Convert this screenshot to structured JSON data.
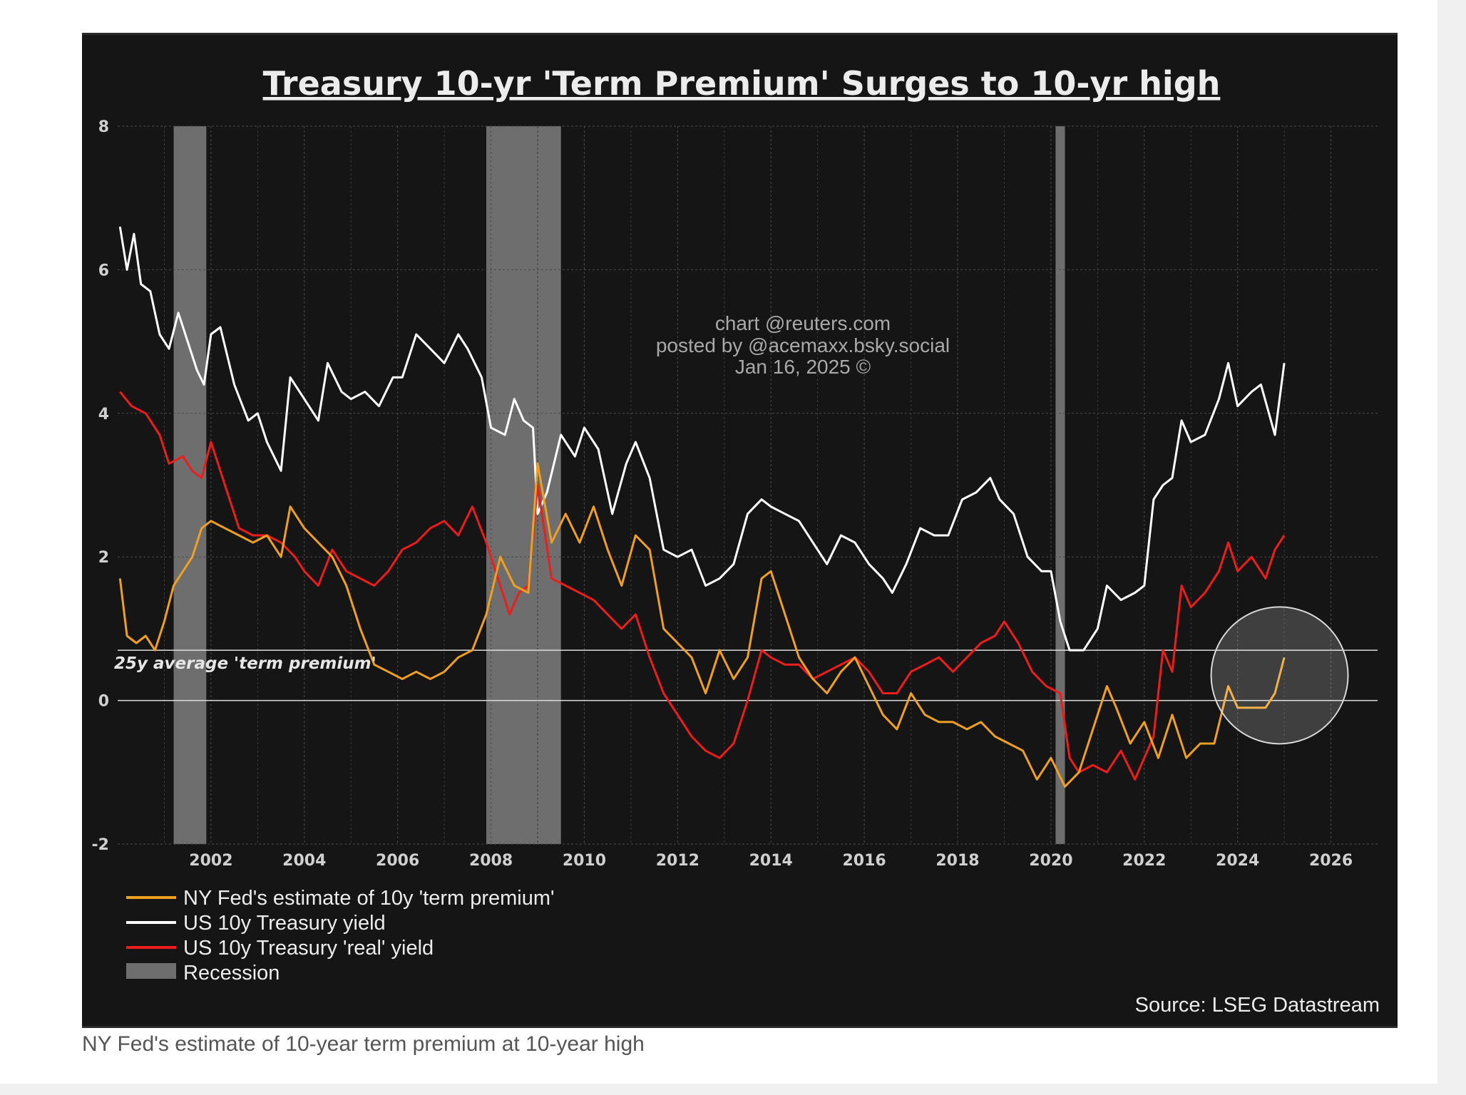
{
  "caption": "NY Fed's estimate of 10-year term premium at 10-year high",
  "colors": {
    "term_premium": "#f0a020",
    "nominal_yield": "#ffffff",
    "real_yield": "#ee1c1c",
    "recession": "#6e6e6e",
    "background": "#151515"
  },
  "chart_data": {
    "type": "line",
    "title": "Treasury 10-yr 'Term Premium' Surges to 10-yr high",
    "watermark": [
      "chart @reuters.com",
      "posted by @acemaxx.bsky.social",
      "Jan 16, 2025 ©"
    ],
    "source": "Source: LSEG Datastream",
    "xlim": [
      2000,
      2027
    ],
    "ylim": [
      -2,
      8
    ],
    "x_ticks": [
      "2002",
      "2004",
      "2006",
      "2008",
      "2010",
      "2012",
      "2014",
      "2016",
      "2018",
      "2020",
      "2022",
      "2024",
      "2026"
    ],
    "y_ticks": [
      "8",
      "6",
      "4",
      "2",
      "0",
      "-2"
    ],
    "grid": true,
    "legend_position": "bottom-left",
    "reference_lines": [
      {
        "label": "25y average 'term premium'",
        "y": 0.7
      },
      {
        "label": "",
        "y": 0
      }
    ],
    "highlight_circle": {
      "x": 2024.9,
      "y": 0.35
    },
    "recessions": [
      {
        "name": "Recession",
        "start": 2001.2,
        "end": 2001.9
      },
      {
        "name": "Recession",
        "start": 2007.9,
        "end": 2009.5
      },
      {
        "name": "Recession",
        "start": 2020.1,
        "end": 2020.3
      }
    ],
    "series": [
      {
        "name": "NY Fed's estimate of 10y 'term premium'",
        "color": "#f0a020",
        "x": [
          2000.05,
          2000.2,
          2000.4,
          2000.6,
          2000.8,
          2001.0,
          2001.2,
          2001.4,
          2001.6,
          2001.8,
          2002.0,
          2002.3,
          2002.6,
          2002.9,
          2003.2,
          2003.5,
          2003.7,
          2004.0,
          2004.3,
          2004.6,
          2004.9,
          2005.2,
          2005.5,
          2005.8,
          2006.1,
          2006.4,
          2006.7,
          2007.0,
          2007.3,
          2007.6,
          2007.9,
          2008.2,
          2008.5,
          2008.8,
          2009.0,
          2009.3,
          2009.6,
          2009.9,
          2010.2,
          2010.5,
          2010.8,
          2011.1,
          2011.4,
          2011.7,
          2012.0,
          2012.3,
          2012.6,
          2012.9,
          2013.2,
          2013.5,
          2013.8,
          2014.0,
          2014.3,
          2014.6,
          2014.9,
          2015.2,
          2015.5,
          2015.8,
          2016.1,
          2016.4,
          2016.7,
          2017.0,
          2017.3,
          2017.6,
          2017.9,
          2018.2,
          2018.5,
          2018.8,
          2019.1,
          2019.4,
          2019.7,
          2020.0,
          2020.3,
          2020.6,
          2020.9,
          2021.2,
          2021.4,
          2021.7,
          2022.0,
          2022.3,
          2022.6,
          2022.9,
          2023.2,
          2023.5,
          2023.8,
          2024.0,
          2024.3,
          2024.6,
          2024.8,
          2025.0
        ],
        "values": [
          1.7,
          0.9,
          0.8,
          0.9,
          0.7,
          1.1,
          1.6,
          1.8,
          2.0,
          2.4,
          2.5,
          2.4,
          2.3,
          2.2,
          2.3,
          2.0,
          2.7,
          2.4,
          2.2,
          2.0,
          1.6,
          1.0,
          0.5,
          0.4,
          0.3,
          0.4,
          0.3,
          0.4,
          0.6,
          0.7,
          1.2,
          2.0,
          1.6,
          1.5,
          3.3,
          2.2,
          2.6,
          2.2,
          2.7,
          2.1,
          1.6,
          2.3,
          2.1,
          1.0,
          0.8,
          0.6,
          0.1,
          0.7,
          0.3,
          0.6,
          1.7,
          1.8,
          1.2,
          0.6,
          0.3,
          0.1,
          0.4,
          0.6,
          0.2,
          -0.2,
          -0.4,
          0.1,
          -0.2,
          -0.3,
          -0.3,
          -0.4,
          -0.3,
          -0.5,
          -0.6,
          -0.7,
          -1.1,
          -0.8,
          -1.2,
          -1.0,
          -0.4,
          0.2,
          -0.1,
          -0.6,
          -0.3,
          -0.8,
          -0.2,
          -0.8,
          -0.6,
          -0.6,
          0.2,
          -0.1,
          -0.1,
          -0.1,
          0.1,
          0.6
        ]
      },
      {
        "name": "US 10y Treasury yield",
        "color": "#ffffff",
        "x": [
          2000.05,
          2000.2,
          2000.35,
          2000.5,
          2000.7,
          2000.9,
          2001.1,
          2001.3,
          2001.5,
          2001.7,
          2001.85,
          2002.0,
          2002.2,
          2002.5,
          2002.8,
          2003.0,
          2003.2,
          2003.5,
          2003.7,
          2004.0,
          2004.3,
          2004.5,
          2004.8,
          2005.0,
          2005.3,
          2005.6,
          2005.9,
          2006.1,
          2006.4,
          2006.7,
          2007.0,
          2007.3,
          2007.5,
          2007.8,
          2008.0,
          2008.3,
          2008.5,
          2008.7,
          2008.9,
          2009.0,
          2009.2,
          2009.5,
          2009.8,
          2010.0,
          2010.3,
          2010.6,
          2010.9,
          2011.1,
          2011.4,
          2011.7,
          2012.0,
          2012.3,
          2012.6,
          2012.9,
          2013.2,
          2013.5,
          2013.8,
          2014.0,
          2014.3,
          2014.6,
          2014.9,
          2015.2,
          2015.5,
          2015.8,
          2016.1,
          2016.4,
          2016.6,
          2016.9,
          2017.2,
          2017.5,
          2017.8,
          2018.1,
          2018.4,
          2018.7,
          2018.9,
          2019.2,
          2019.5,
          2019.8,
          2020.0,
          2020.2,
          2020.4,
          2020.7,
          2021.0,
          2021.2,
          2021.5,
          2021.8,
          2022.0,
          2022.2,
          2022.4,
          2022.6,
          2022.8,
          2023.0,
          2023.3,
          2023.6,
          2023.8,
          2024.0,
          2024.3,
          2024.5,
          2024.8,
          2025.0
        ],
        "values": [
          6.6,
          6.0,
          6.5,
          5.8,
          5.7,
          5.1,
          4.9,
          5.4,
          5.0,
          4.6,
          4.4,
          5.1,
          5.2,
          4.4,
          3.9,
          4.0,
          3.6,
          3.2,
          4.5,
          4.2,
          3.9,
          4.7,
          4.3,
          4.2,
          4.3,
          4.1,
          4.5,
          4.5,
          5.1,
          4.9,
          4.7,
          5.1,
          4.9,
          4.5,
          3.8,
          3.7,
          4.2,
          3.9,
          3.8,
          2.6,
          2.9,
          3.7,
          3.4,
          3.8,
          3.5,
          2.6,
          3.3,
          3.6,
          3.1,
          2.1,
          2.0,
          2.1,
          1.6,
          1.7,
          1.9,
          2.6,
          2.8,
          2.7,
          2.6,
          2.5,
          2.2,
          1.9,
          2.3,
          2.2,
          1.9,
          1.7,
          1.5,
          1.9,
          2.4,
          2.3,
          2.3,
          2.8,
          2.9,
          3.1,
          2.8,
          2.6,
          2.0,
          1.8,
          1.8,
          1.1,
          0.7,
          0.7,
          1.0,
          1.6,
          1.4,
          1.5,
          1.6,
          2.8,
          3.0,
          3.1,
          3.9,
          3.6,
          3.7,
          4.2,
          4.7,
          4.1,
          4.3,
          4.4,
          3.7,
          4.7
        ]
      },
      {
        "name": "US 10y Treasury 'real' yield",
        "color": "#ee1c1c",
        "x": [
          2000.05,
          2000.3,
          2000.6,
          2000.9,
          2001.1,
          2001.4,
          2001.6,
          2001.8,
          2002.0,
          2002.3,
          2002.6,
          2002.9,
          2003.2,
          2003.5,
          2003.8,
          2004.0,
          2004.3,
          2004.6,
          2004.9,
          2005.2,
          2005.5,
          2005.8,
          2006.1,
          2006.4,
          2006.7,
          2007.0,
          2007.3,
          2007.6,
          2007.9,
          2008.2,
          2008.4,
          2008.6,
          2008.8,
          2009.0,
          2009.3,
          2009.6,
          2009.9,
          2010.2,
          2010.5,
          2010.8,
          2011.1,
          2011.4,
          2011.7,
          2012.0,
          2012.3,
          2012.6,
          2012.9,
          2013.2,
          2013.5,
          2013.8,
          2014.0,
          2014.3,
          2014.6,
          2014.9,
          2015.2,
          2015.5,
          2015.8,
          2016.1,
          2016.4,
          2016.7,
          2017.0,
          2017.3,
          2017.6,
          2017.9,
          2018.2,
          2018.5,
          2018.8,
          2019.0,
          2019.3,
          2019.6,
          2019.9,
          2020.2,
          2020.4,
          2020.6,
          2020.9,
          2021.2,
          2021.5,
          2021.8,
          2022.0,
          2022.2,
          2022.4,
          2022.6,
          2022.8,
          2023.0,
          2023.3,
          2023.6,
          2023.8,
          2024.0,
          2024.3,
          2024.6,
          2024.8,
          2025.0
        ],
        "values": [
          4.3,
          4.1,
          4.0,
          3.7,
          3.3,
          3.4,
          3.2,
          3.1,
          3.6,
          3.0,
          2.4,
          2.3,
          2.3,
          2.2,
          2.0,
          1.8,
          1.6,
          2.1,
          1.8,
          1.7,
          1.6,
          1.8,
          2.1,
          2.2,
          2.4,
          2.5,
          2.3,
          2.7,
          2.2,
          1.6,
          1.2,
          1.5,
          1.6,
          3.0,
          1.7,
          1.6,
          1.5,
          1.4,
          1.2,
          1.0,
          1.2,
          0.6,
          0.1,
          -0.2,
          -0.5,
          -0.7,
          -0.8,
          -0.6,
          0.0,
          0.7,
          0.6,
          0.5,
          0.5,
          0.3,
          0.4,
          0.5,
          0.6,
          0.4,
          0.1,
          0.1,
          0.4,
          0.5,
          0.6,
          0.4,
          0.6,
          0.8,
          0.9,
          1.1,
          0.8,
          0.4,
          0.2,
          0.1,
          -0.8,
          -1.0,
          -0.9,
          -1.0,
          -0.7,
          -1.1,
          -0.8,
          -0.5,
          0.7,
          0.4,
          1.6,
          1.3,
          1.5,
          1.8,
          2.2,
          1.8,
          2.0,
          1.7,
          2.1,
          2.3
        ]
      }
    ]
  }
}
